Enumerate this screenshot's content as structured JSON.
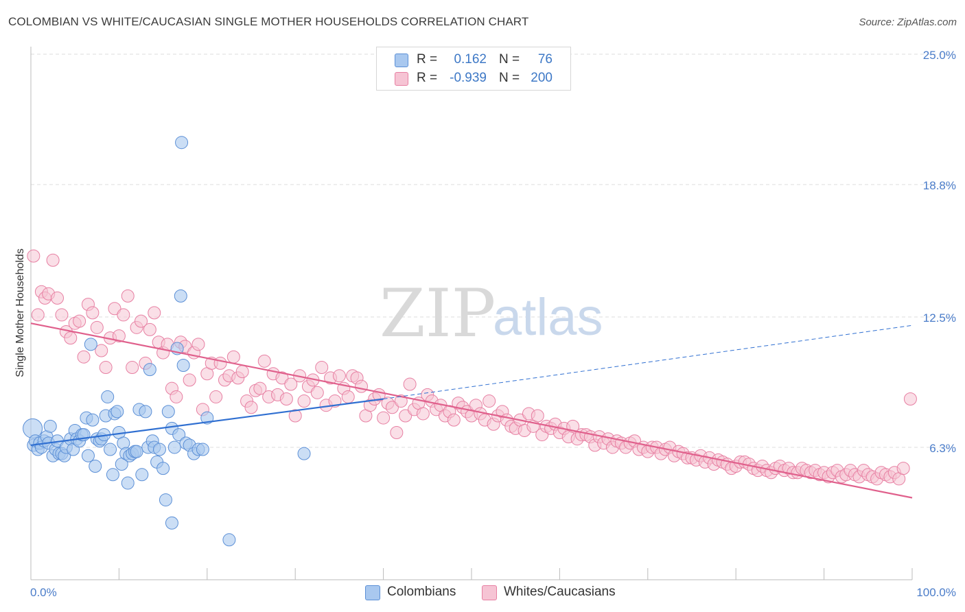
{
  "title": "COLOMBIAN VS WHITE/CAUCASIAN SINGLE MOTHER HOUSEHOLDS CORRELATION CHART",
  "source": "Source: ZipAtlas.com",
  "watermark": {
    "zip": "ZIP",
    "atlas": "atlas"
  },
  "legend": {
    "rows": [
      {
        "r_label": "R =",
        "r_value": "0.162",
        "n_label": "N =",
        "n_value": "76"
      },
      {
        "r_label": "R =",
        "r_value": "-0.939",
        "n_label": "N =",
        "n_value": "200"
      }
    ]
  },
  "bottom_legend": {
    "colombians": "Colombians",
    "whites": "Whites/Caucasians"
  },
  "colors": {
    "blue_fill": "#a9c8ef",
    "blue_stroke": "#5b8fd6",
    "blue_line": "#2f6fd1",
    "pink_fill": "#f6c4d4",
    "pink_stroke": "#e77fa2",
    "pink_line": "#e0608c",
    "tick_text": "#4a7cc9",
    "grid": "#dddddd"
  },
  "chart_data": {
    "type": "scatter",
    "title": "COLOMBIAN VS WHITE/CAUCASIAN SINGLE MOTHER HOUSEHOLDS CORRELATION CHART",
    "xlabel": "",
    "ylabel": "Single Mother Households",
    "xlim": [
      0,
      100
    ],
    "ylim": [
      0,
      25
    ],
    "x_ticks": [
      "0.0%",
      "100.0%"
    ],
    "y_ticks": [
      {
        "value": 6.3,
        "label": "6.3%"
      },
      {
        "value": 12.5,
        "label": "12.5%"
      },
      {
        "value": 18.8,
        "label": "18.8%"
      },
      {
        "value": 25.0,
        "label": "25.0%"
      }
    ],
    "grid": true,
    "legend_position": "top-center",
    "series": [
      {
        "name": "Colombians",
        "r": 0.162,
        "n": 76,
        "trend": {
          "x": [
            0,
            40
          ],
          "y": [
            6.4,
            8.6
          ]
        },
        "trend_extension": {
          "x": [
            40,
            100
          ],
          "y": [
            8.6,
            12.1
          ]
        },
        "points": [
          [
            0.2,
            7.2
          ],
          [
            0.3,
            6.4
          ],
          [
            0.5,
            6.6
          ],
          [
            0.8,
            6.2
          ],
          [
            1.0,
            6.5
          ],
          [
            1.2,
            6.3
          ],
          [
            1.5,
            6.6
          ],
          [
            1.8,
            6.8
          ],
          [
            2.0,
            6.5
          ],
          [
            2.2,
            7.3
          ],
          [
            2.5,
            5.9
          ],
          [
            2.8,
            6.2
          ],
          [
            3.0,
            6.6
          ],
          [
            3.2,
            6.0
          ],
          [
            3.5,
            6.0
          ],
          [
            3.8,
            5.9
          ],
          [
            4.0,
            6.3
          ],
          [
            4.5,
            6.7
          ],
          [
            4.8,
            6.2
          ],
          [
            5.0,
            7.1
          ],
          [
            5.2,
            6.7
          ],
          [
            5.5,
            6.6
          ],
          [
            5.8,
            6.9
          ],
          [
            6.0,
            6.9
          ],
          [
            6.3,
            7.7
          ],
          [
            6.5,
            5.9
          ],
          [
            6.8,
            11.2
          ],
          [
            7.0,
            7.6
          ],
          [
            7.3,
            5.4
          ],
          [
            7.5,
            6.7
          ],
          [
            7.8,
            6.6
          ],
          [
            8.0,
            6.7
          ],
          [
            8.3,
            6.9
          ],
          [
            8.5,
            7.8
          ],
          [
            8.7,
            8.7
          ],
          [
            9.0,
            6.2
          ],
          [
            9.3,
            5.0
          ],
          [
            9.5,
            7.9
          ],
          [
            9.8,
            8.0
          ],
          [
            10.0,
            7.0
          ],
          [
            10.3,
            5.5
          ],
          [
            10.5,
            6.5
          ],
          [
            10.8,
            6.0
          ],
          [
            11.0,
            4.6
          ],
          [
            11.2,
            5.9
          ],
          [
            11.5,
            6.0
          ],
          [
            11.8,
            6.1
          ],
          [
            12.0,
            6.1
          ],
          [
            12.3,
            8.1
          ],
          [
            12.6,
            5.0
          ],
          [
            13.0,
            8.0
          ],
          [
            13.3,
            6.3
          ],
          [
            13.5,
            10.0
          ],
          [
            13.8,
            6.6
          ],
          [
            14.0,
            6.3
          ],
          [
            14.3,
            5.6
          ],
          [
            14.6,
            6.2
          ],
          [
            15.0,
            5.3
          ],
          [
            15.3,
            3.8
          ],
          [
            15.6,
            8.0
          ],
          [
            16.0,
            7.2
          ],
          [
            16.3,
            6.3
          ],
          [
            16.6,
            11.0
          ],
          [
            16.8,
            6.9
          ],
          [
            17.0,
            13.5
          ],
          [
            17.3,
            10.2
          ],
          [
            17.6,
            6.5
          ],
          [
            18.0,
            6.4
          ],
          [
            18.5,
            6.0
          ],
          [
            19.0,
            6.2
          ],
          [
            19.5,
            6.2
          ],
          [
            20.0,
            7.7
          ],
          [
            16.0,
            2.7
          ],
          [
            17.1,
            20.8
          ],
          [
            22.5,
            1.9
          ],
          [
            31.0,
            6.0
          ]
        ]
      },
      {
        "name": "Whites/Caucasians",
        "r": -0.939,
        "n": 200,
        "trend": {
          "x": [
            0,
            100
          ],
          "y": [
            12.2,
            3.9
          ]
        },
        "points": [
          [
            0.3,
            15.4
          ],
          [
            0.8,
            12.6
          ],
          [
            1.2,
            13.7
          ],
          [
            1.6,
            13.4
          ],
          [
            2.0,
            13.6
          ],
          [
            2.5,
            15.2
          ],
          [
            3.0,
            13.4
          ],
          [
            3.5,
            12.6
          ],
          [
            4.0,
            11.8
          ],
          [
            4.5,
            11.5
          ],
          [
            5.0,
            12.2
          ],
          [
            5.5,
            12.3
          ],
          [
            6.0,
            10.6
          ],
          [
            6.5,
            13.1
          ],
          [
            7.0,
            12.7
          ],
          [
            7.5,
            12.0
          ],
          [
            8.0,
            10.9
          ],
          [
            8.5,
            10.1
          ],
          [
            9.0,
            11.5
          ],
          [
            9.5,
            12.9
          ],
          [
            10.0,
            11.6
          ],
          [
            10.5,
            12.6
          ],
          [
            11.0,
            13.5
          ],
          [
            11.5,
            10.1
          ],
          [
            12.0,
            12.0
          ],
          [
            12.5,
            12.3
          ],
          [
            13.0,
            10.3
          ],
          [
            13.5,
            11.9
          ],
          [
            14.0,
            12.7
          ],
          [
            14.5,
            11.3
          ],
          [
            15.0,
            10.8
          ],
          [
            15.5,
            11.2
          ],
          [
            16.0,
            9.1
          ],
          [
            16.5,
            8.7
          ],
          [
            17.0,
            11.3
          ],
          [
            17.5,
            11.1
          ],
          [
            18.0,
            9.5
          ],
          [
            18.5,
            10.8
          ],
          [
            19.0,
            11.2
          ],
          [
            19.5,
            8.1
          ],
          [
            20.0,
            9.8
          ],
          [
            20.5,
            10.3
          ],
          [
            21.0,
            8.7
          ],
          [
            21.5,
            10.3
          ],
          [
            22.0,
            9.5
          ],
          [
            22.5,
            9.7
          ],
          [
            23.0,
            10.6
          ],
          [
            23.5,
            9.6
          ],
          [
            24.0,
            9.9
          ],
          [
            24.5,
            8.5
          ],
          [
            25.0,
            8.2
          ],
          [
            25.5,
            9.0
          ],
          [
            26.0,
            9.1
          ],
          [
            26.5,
            10.4
          ],
          [
            27.0,
            8.7
          ],
          [
            27.5,
            9.8
          ],
          [
            28.0,
            8.8
          ],
          [
            28.5,
            9.6
          ],
          [
            29.0,
            8.6
          ],
          [
            29.5,
            9.3
          ],
          [
            30.0,
            7.8
          ],
          [
            30.5,
            9.7
          ],
          [
            31.0,
            8.5
          ],
          [
            31.5,
            9.2
          ],
          [
            32.0,
            9.5
          ],
          [
            32.5,
            8.9
          ],
          [
            33.0,
            10.1
          ],
          [
            33.5,
            8.3
          ],
          [
            34.0,
            9.6
          ],
          [
            34.5,
            8.5
          ],
          [
            35.0,
            9.7
          ],
          [
            35.5,
            9.1
          ],
          [
            36.0,
            8.7
          ],
          [
            36.5,
            9.7
          ],
          [
            37.0,
            9.6
          ],
          [
            37.5,
            9.2
          ],
          [
            38.0,
            7.8
          ],
          [
            38.5,
            8.3
          ],
          [
            39.0,
            8.6
          ],
          [
            39.5,
            8.8
          ],
          [
            40.0,
            7.7
          ],
          [
            40.5,
            8.4
          ],
          [
            41.0,
            8.2
          ],
          [
            41.5,
            7.0
          ],
          [
            42.0,
            8.5
          ],
          [
            42.5,
            7.8
          ],
          [
            43.0,
            9.3
          ],
          [
            43.5,
            8.1
          ],
          [
            44.0,
            8.4
          ],
          [
            44.5,
            7.9
          ],
          [
            45.0,
            8.8
          ],
          [
            45.5,
            8.5
          ],
          [
            46.0,
            8.1
          ],
          [
            46.5,
            8.3
          ],
          [
            47.0,
            7.8
          ],
          [
            47.5,
            8.0
          ],
          [
            48.0,
            7.6
          ],
          [
            48.5,
            8.4
          ],
          [
            49.0,
            8.2
          ],
          [
            49.5,
            8.0
          ],
          [
            50.0,
            7.8
          ],
          [
            50.5,
            8.3
          ],
          [
            51.0,
            7.9
          ],
          [
            51.5,
            7.6
          ],
          [
            52.0,
            8.5
          ],
          [
            52.5,
            7.4
          ],
          [
            53.0,
            7.8
          ],
          [
            53.5,
            8.0
          ],
          [
            54.0,
            7.6
          ],
          [
            54.5,
            7.3
          ],
          [
            55.0,
            7.2
          ],
          [
            55.5,
            7.6
          ],
          [
            56.0,
            7.1
          ],
          [
            56.5,
            7.9
          ],
          [
            57.0,
            7.3
          ],
          [
            57.5,
            7.8
          ],
          [
            58.0,
            6.9
          ],
          [
            58.5,
            7.3
          ],
          [
            59.0,
            7.2
          ],
          [
            59.5,
            7.4
          ],
          [
            60.0,
            7.0
          ],
          [
            60.5,
            7.2
          ],
          [
            61.0,
            6.8
          ],
          [
            61.5,
            7.3
          ],
          [
            62.0,
            6.7
          ],
          [
            62.5,
            6.9
          ],
          [
            63.0,
            6.9
          ],
          [
            63.5,
            6.8
          ],
          [
            64.0,
            6.4
          ],
          [
            64.5,
            6.8
          ],
          [
            65.0,
            6.5
          ],
          [
            65.5,
            6.7
          ],
          [
            66.0,
            6.3
          ],
          [
            66.5,
            6.6
          ],
          [
            67.0,
            6.5
          ],
          [
            67.5,
            6.3
          ],
          [
            68.0,
            6.5
          ],
          [
            68.5,
            6.6
          ],
          [
            69.0,
            6.2
          ],
          [
            69.5,
            6.3
          ],
          [
            70.0,
            6.1
          ],
          [
            70.5,
            6.3
          ],
          [
            71.0,
            6.3
          ],
          [
            71.5,
            6.0
          ],
          [
            72.0,
            6.2
          ],
          [
            72.5,
            6.3
          ],
          [
            73.0,
            5.9
          ],
          [
            73.5,
            6.1
          ],
          [
            74.0,
            6.0
          ],
          [
            74.5,
            5.8
          ],
          [
            75.0,
            5.8
          ],
          [
            75.5,
            5.7
          ],
          [
            76.0,
            5.9
          ],
          [
            76.5,
            5.6
          ],
          [
            77.0,
            5.8
          ],
          [
            77.5,
            5.5
          ],
          [
            78.0,
            5.7
          ],
          [
            78.5,
            5.6
          ],
          [
            79.0,
            5.5
          ],
          [
            79.5,
            5.3
          ],
          [
            80.0,
            5.4
          ],
          [
            80.5,
            5.6
          ],
          [
            81.0,
            5.6
          ],
          [
            81.5,
            5.5
          ],
          [
            82.0,
            5.3
          ],
          [
            82.5,
            5.2
          ],
          [
            83.0,
            5.4
          ],
          [
            83.5,
            5.2
          ],
          [
            84.0,
            5.1
          ],
          [
            84.5,
            5.3
          ],
          [
            85.0,
            5.4
          ],
          [
            85.5,
            5.2
          ],
          [
            86.0,
            5.3
          ],
          [
            86.5,
            5.1
          ],
          [
            87.0,
            5.1
          ],
          [
            87.5,
            5.3
          ],
          [
            88.0,
            5.2
          ],
          [
            88.5,
            5.1
          ],
          [
            89.0,
            5.2
          ],
          [
            89.5,
            5.0
          ],
          [
            90.0,
            5.1
          ],
          [
            90.5,
            4.9
          ],
          [
            91.0,
            5.1
          ],
          [
            91.5,
            5.2
          ],
          [
            92.0,
            4.9
          ],
          [
            92.5,
            5.0
          ],
          [
            93.0,
            5.2
          ],
          [
            93.5,
            5.0
          ],
          [
            94.0,
            4.9
          ],
          [
            94.5,
            5.2
          ],
          [
            95.0,
            5.0
          ],
          [
            95.5,
            4.9
          ],
          [
            96.0,
            4.8
          ],
          [
            96.5,
            5.1
          ],
          [
            97.0,
            5.0
          ],
          [
            97.5,
            4.9
          ],
          [
            98.0,
            5.1
          ],
          [
            98.5,
            4.8
          ],
          [
            99.0,
            5.3
          ],
          [
            99.8,
            8.6
          ]
        ]
      }
    ]
  }
}
